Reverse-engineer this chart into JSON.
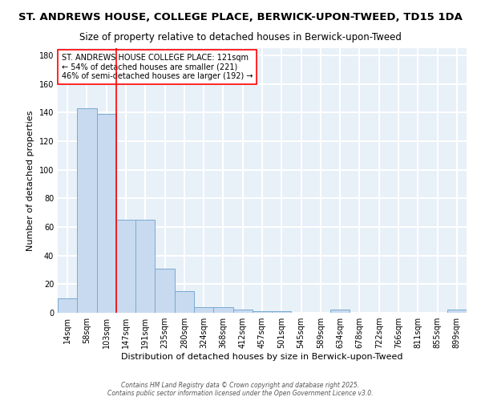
{
  "title": "ST. ANDREWS HOUSE, COLLEGE PLACE, BERWICK-UPON-TWEED, TD15 1DA",
  "subtitle": "Size of property relative to detached houses in Berwick-upon-Tweed",
  "xlabel": "Distribution of detached houses by size in Berwick-upon-Tweed",
  "ylabel": "Number of detached properties",
  "bar_labels": [
    "14sqm",
    "58sqm",
    "103sqm",
    "147sqm",
    "191sqm",
    "235sqm",
    "280sqm",
    "324sqm",
    "368sqm",
    "412sqm",
    "457sqm",
    "501sqm",
    "545sqm",
    "589sqm",
    "634sqm",
    "678sqm",
    "722sqm",
    "766sqm",
    "811sqm",
    "855sqm",
    "899sqm"
  ],
  "bar_heights": [
    10,
    143,
    139,
    65,
    65,
    31,
    15,
    4,
    4,
    2,
    1,
    1,
    0,
    0,
    2,
    0,
    0,
    0,
    0,
    0,
    2
  ],
  "bar_color": "#c8daf0",
  "bar_edge_color": "#7aaad0",
  "plot_bg_color": "#e8f0f8",
  "fig_bg_color": "#ffffff",
  "grid_color": "#ffffff",
  "red_line_x": 2.5,
  "annotation_text": "ST. ANDREWS HOUSE COLLEGE PLACE: 121sqm\n← 54% of detached houses are smaller (221)\n46% of semi-detached houses are larger (192) →",
  "ylim": [
    0,
    185
  ],
  "yticks": [
    0,
    20,
    40,
    60,
    80,
    100,
    120,
    140,
    160,
    180
  ],
  "footer_text": "Contains HM Land Registry data © Crown copyright and database right 2025.\nContains public sector information licensed under the Open Government Licence v3.0.",
  "title_fontsize": 9.5,
  "subtitle_fontsize": 8.5,
  "xlabel_fontsize": 8,
  "ylabel_fontsize": 8,
  "annotation_fontsize": 7,
  "footer_fontsize": 5.5,
  "tick_fontsize": 7
}
